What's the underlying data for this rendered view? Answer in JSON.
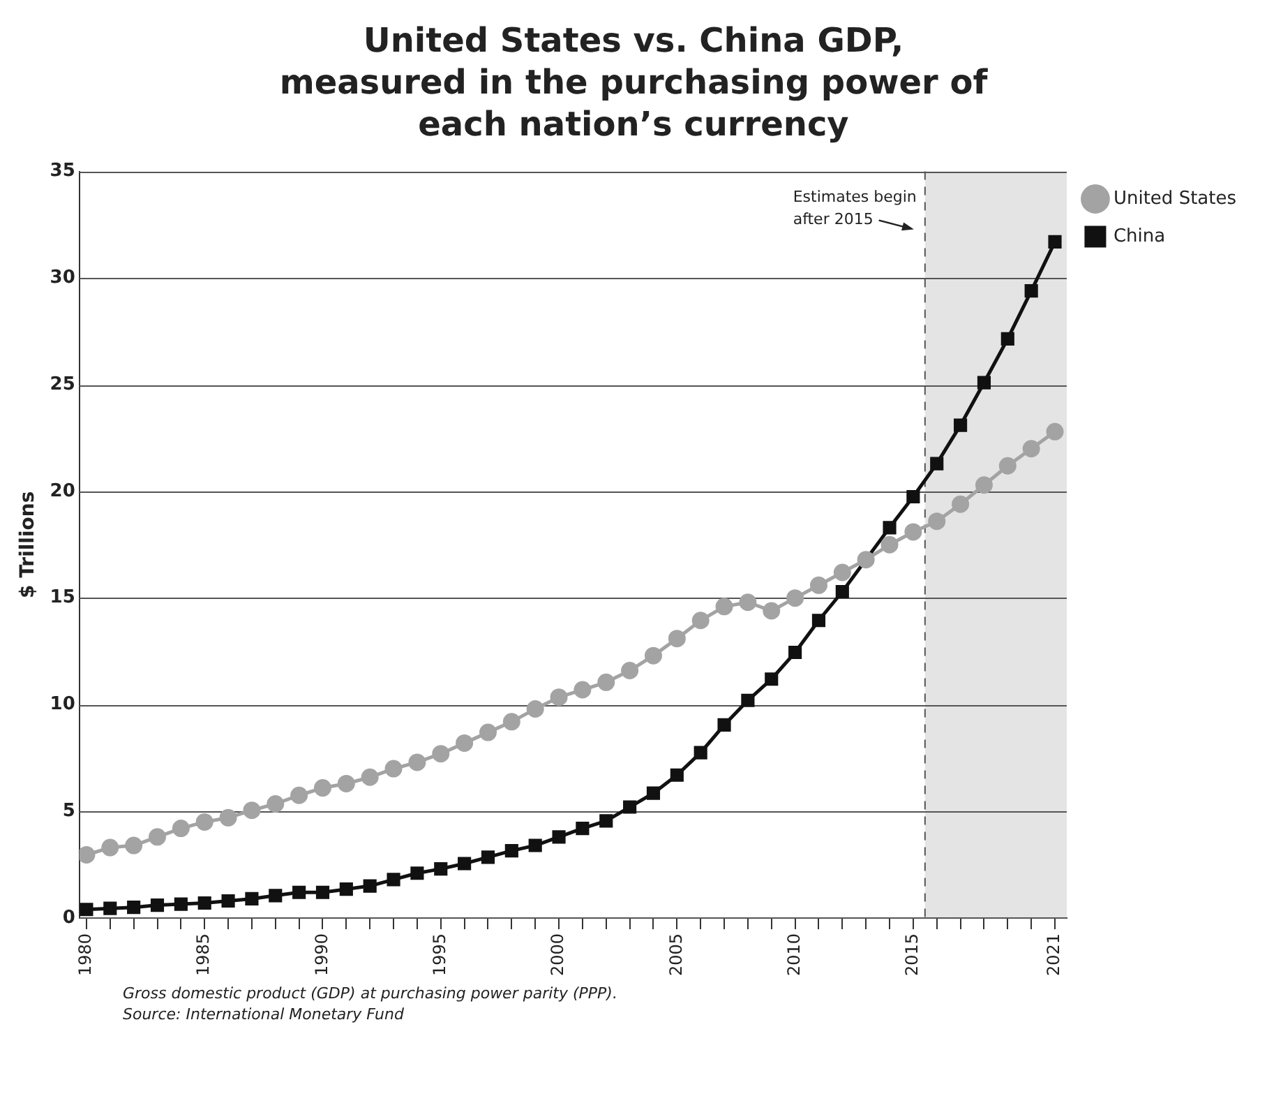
{
  "chart_data": {
    "type": "line",
    "title": "United States vs. China GDP, measured in the purchasing power of each nation’s currency",
    "ylabel": "$ Trillions",
    "x": [
      1980,
      1981,
      1982,
      1983,
      1984,
      1985,
      1986,
      1987,
      1988,
      1989,
      1990,
      1991,
      1992,
      1993,
      1994,
      1995,
      1996,
      1997,
      1998,
      1999,
      2000,
      2001,
      2002,
      2003,
      2004,
      2005,
      2006,
      2007,
      2008,
      2009,
      2010,
      2011,
      2012,
      2013,
      2014,
      2015,
      2016,
      2017,
      2018,
      2019,
      2020,
      2021
    ],
    "series": [
      {
        "name": "United States",
        "color": "#a3a3a3",
        "marker": "circle",
        "values": [
          2.96,
          3.3,
          3.4,
          3.8,
          4.2,
          4.5,
          4.7,
          5.05,
          5.35,
          5.75,
          6.1,
          6.3,
          6.6,
          7.0,
          7.3,
          7.7,
          8.2,
          8.7,
          9.2,
          9.8,
          10.35,
          10.7,
          11.05,
          11.6,
          12.3,
          13.1,
          13.95,
          14.6,
          14.8,
          14.4,
          15.0,
          15.6,
          16.2,
          16.8,
          17.5,
          18.1,
          18.6,
          19.4,
          20.3,
          21.2,
          22.0,
          22.8
        ]
      },
      {
        "name": "China",
        "color": "#111111",
        "marker": "square",
        "values": [
          0.4,
          0.45,
          0.5,
          0.6,
          0.65,
          0.7,
          0.8,
          0.9,
          1.05,
          1.2,
          1.2,
          1.35,
          1.5,
          1.8,
          2.1,
          2.3,
          2.55,
          2.85,
          3.15,
          3.4,
          3.8,
          4.2,
          4.55,
          5.2,
          5.85,
          6.7,
          7.75,
          9.05,
          10.2,
          11.2,
          12.45,
          13.95,
          15.3,
          null,
          18.3,
          19.75,
          21.3,
          23.1,
          25.1,
          27.15,
          29.4,
          31.7
        ]
      }
    ],
    "xlim": [
      1979.7,
      2021.5
    ],
    "xticks": [
      1980,
      {
        "value": 1981,
        "label": null
      },
      {
        "value": 1982,
        "label": null
      },
      {
        "value": 1983,
        "label": null
      },
      {
        "value": 1984,
        "label": null
      },
      1985,
      {
        "value": 1986,
        "label": null
      },
      {
        "value": 1987,
        "label": null
      },
      {
        "value": 1988,
        "label": null
      },
      {
        "value": 1989,
        "label": null
      },
      1990,
      {
        "value": 1991,
        "label": null
      },
      {
        "value": 1992,
        "label": null
      },
      {
        "value": 1993,
        "label": null
      },
      {
        "value": 1994,
        "label": null
      },
      1995,
      {
        "value": 1996,
        "label": null
      },
      {
        "value": 1997,
        "label": null
      },
      {
        "value": 1998,
        "label": null
      },
      {
        "value": 1999,
        "label": null
      },
      2000,
      {
        "value": 2001,
        "label": null
      },
      {
        "value": 2002,
        "label": null
      },
      {
        "value": 2003,
        "label": null
      },
      {
        "value": 2004,
        "label": null
      },
      2005,
      {
        "value": 2006,
        "label": null
      },
      {
        "value": 2007,
        "label": null
      },
      {
        "value": 2008,
        "label": null
      },
      {
        "value": 2009,
        "label": null
      },
      2010,
      {
        "value": 2011,
        "label": null
      },
      {
        "value": 2012,
        "label": null
      },
      {
        "value": 2013,
        "label": null
      },
      {
        "value": 2014,
        "label": null
      },
      2015,
      {
        "value": 2016,
        "label": null
      },
      {
        "value": 2017,
        "label": null
      },
      {
        "value": 2018,
        "label": null
      },
      {
        "value": 2019,
        "label": null
      },
      {
        "value": 2020,
        "label": null
      },
      2021
    ],
    "ylim": [
      0,
      35
    ],
    "yticks": [
      0,
      5,
      10,
      15,
      20,
      25,
      30,
      35
    ],
    "grid": "y",
    "legend": "top right",
    "line_style": "solid",
    "bands": [
      {
        "axis": "x",
        "from": 2015.5,
        "to": 2021.5,
        "color": "#e4e4e4"
      }
    ],
    "ref_lines": [
      {
        "axis": "x",
        "value": 2015.5,
        "label": "Estimates begin after 2015",
        "color": "#555555",
        "line_style": "dashed"
      }
    ],
    "annotations": [
      "Gross domestic product (GDP) at purchasing power parity (PPP).",
      "Source: International Monetary Fund"
    ]
  }
}
